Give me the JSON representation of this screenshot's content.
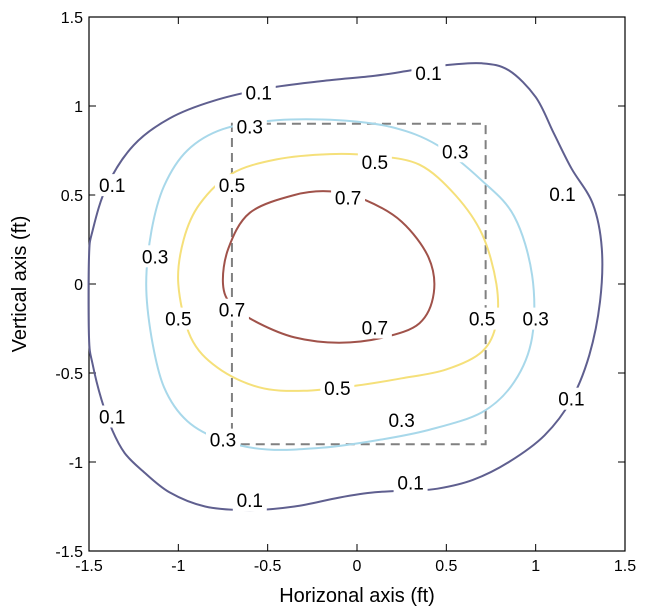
{
  "chart_data": {
    "type": "contour",
    "xlabel": "Horizonal axis (ft)",
    "ylabel": "Vertical axis (ft)",
    "xlim": [
      -1.5,
      1.5
    ],
    "ylim": [
      -1.5,
      1.5
    ],
    "xticks": [
      -1.5,
      -1,
      -0.5,
      0,
      0.5,
      1,
      1.5
    ],
    "yticks": [
      -1.5,
      -1,
      -0.5,
      0,
      0.5,
      1,
      1.5
    ],
    "xtick_labels": [
      "-1.5",
      "-1",
      "-0.5",
      "0",
      "0.5",
      "1",
      "1.5"
    ],
    "ytick_labels": [
      "-1.5",
      "-1",
      "-0.5",
      "0",
      "0.5",
      "1",
      "1.5"
    ],
    "grid": false,
    "contours": [
      {
        "level": 0.1,
        "label": "0.1",
        "color": "#5f5f8f",
        "points": [
          [
            -1.5,
            0.15
          ],
          [
            -1.48,
            0.3
          ],
          [
            -1.4,
            0.55
          ],
          [
            -1.25,
            0.78
          ],
          [
            -1.05,
            0.93
          ],
          [
            -0.8,
            1.03
          ],
          [
            -0.5,
            1.1
          ],
          [
            -0.2,
            1.14
          ],
          [
            0.1,
            1.17
          ],
          [
            0.3,
            1.2
          ],
          [
            0.5,
            1.23
          ],
          [
            0.7,
            1.24
          ],
          [
            0.85,
            1.2
          ],
          [
            1.0,
            1.05
          ],
          [
            1.1,
            0.85
          ],
          [
            1.2,
            0.65
          ],
          [
            1.32,
            0.45
          ],
          [
            1.37,
            0.2
          ],
          [
            1.36,
            -0.1
          ],
          [
            1.3,
            -0.4
          ],
          [
            1.2,
            -0.65
          ],
          [
            1.05,
            -0.85
          ],
          [
            0.85,
            -1.0
          ],
          [
            0.65,
            -1.1
          ],
          [
            0.45,
            -1.15
          ],
          [
            0.3,
            -1.16
          ],
          [
            0.1,
            -1.17
          ],
          [
            -0.1,
            -1.2
          ],
          [
            -0.35,
            -1.25
          ],
          [
            -0.6,
            -1.27
          ],
          [
            -0.85,
            -1.25
          ],
          [
            -1.05,
            -1.17
          ],
          [
            -1.2,
            -1.05
          ],
          [
            -1.3,
            -0.95
          ],
          [
            -1.37,
            -0.82
          ],
          [
            -1.43,
            -0.65
          ],
          [
            -1.48,
            -0.45
          ],
          [
            -1.5,
            -0.3
          ]
        ],
        "label_points": [
          [
            -0.55,
            1.07
          ],
          [
            0.4,
            1.18
          ],
          [
            1.15,
            0.5
          ],
          [
            1.2,
            -0.65
          ],
          [
            0.3,
            -1.12
          ],
          [
            -0.6,
            -1.22
          ],
          [
            -1.37,
            -0.75
          ],
          [
            -1.37,
            0.55
          ]
        ]
      },
      {
        "level": 0.3,
        "label": "0.3",
        "color": "#a8d8ea",
        "points": [
          [
            -1.15,
            0.3
          ],
          [
            -1.08,
            0.55
          ],
          [
            -0.95,
            0.75
          ],
          [
            -0.75,
            0.87
          ],
          [
            -0.45,
            0.92
          ],
          [
            -0.1,
            0.92
          ],
          [
            0.2,
            0.88
          ],
          [
            0.45,
            0.78
          ],
          [
            0.7,
            0.58
          ],
          [
            0.88,
            0.38
          ],
          [
            0.98,
            0.05
          ],
          [
            0.98,
            -0.3
          ],
          [
            0.88,
            -0.55
          ],
          [
            0.7,
            -0.72
          ],
          [
            0.4,
            -0.82
          ],
          [
            0.1,
            -0.88
          ],
          [
            -0.2,
            -0.92
          ],
          [
            -0.5,
            -0.93
          ],
          [
            -0.75,
            -0.88
          ],
          [
            -0.95,
            -0.77
          ],
          [
            -1.08,
            -0.58
          ],
          [
            -1.15,
            -0.3
          ],
          [
            -1.18,
            0.0
          ]
        ],
        "label_points": [
          [
            -0.6,
            0.88
          ],
          [
            0.55,
            0.74
          ],
          [
            1.0,
            -0.2
          ],
          [
            0.25,
            -0.77
          ],
          [
            -0.75,
            -0.88
          ],
          [
            -1.13,
            0.15
          ]
        ]
      },
      {
        "level": 0.5,
        "label": "0.5",
        "color": "#f5e07a",
        "points": [
          [
            -1.0,
            0.0
          ],
          [
            -0.97,
            0.25
          ],
          [
            -0.88,
            0.45
          ],
          [
            -0.7,
            0.62
          ],
          [
            -0.45,
            0.7
          ],
          [
            -0.15,
            0.73
          ],
          [
            0.1,
            0.72
          ],
          [
            0.35,
            0.67
          ],
          [
            0.55,
            0.5
          ],
          [
            0.7,
            0.28
          ],
          [
            0.78,
            0.0
          ],
          [
            0.78,
            -0.22
          ],
          [
            0.7,
            -0.38
          ],
          [
            0.5,
            -0.48
          ],
          [
            0.25,
            -0.53
          ],
          [
            0.0,
            -0.57
          ],
          [
            -0.3,
            -0.6
          ],
          [
            -0.55,
            -0.58
          ],
          [
            -0.78,
            -0.47
          ],
          [
            -0.93,
            -0.3
          ]
        ],
        "label_points": [
          [
            -0.7,
            0.55
          ],
          [
            0.1,
            0.68
          ],
          [
            0.7,
            -0.2
          ],
          [
            -0.11,
            -0.59
          ],
          [
            -1.0,
            -0.2
          ]
        ]
      },
      {
        "level": 0.7,
        "label": "0.7",
        "color": "#a0524a",
        "points": [
          [
            -0.75,
            0.0
          ],
          [
            -0.72,
            0.2
          ],
          [
            -0.6,
            0.4
          ],
          [
            -0.35,
            0.5
          ],
          [
            -0.15,
            0.52
          ],
          [
            0.05,
            0.47
          ],
          [
            0.25,
            0.35
          ],
          [
            0.4,
            0.15
          ],
          [
            0.43,
            -0.05
          ],
          [
            0.35,
            -0.22
          ],
          [
            0.15,
            -0.3
          ],
          [
            -0.1,
            -0.33
          ],
          [
            -0.35,
            -0.3
          ],
          [
            -0.55,
            -0.22
          ],
          [
            -0.7,
            -0.12
          ]
        ],
        "label_points": [
          [
            -0.05,
            0.48
          ],
          [
            0.1,
            -0.25
          ],
          [
            -0.7,
            -0.15
          ]
        ]
      }
    ],
    "annotations": [
      {
        "type": "dashed-rectangle",
        "x": [
          -0.7,
          0.72
        ],
        "y": [
          -0.9,
          0.9
        ],
        "color": "#808080"
      }
    ]
  }
}
